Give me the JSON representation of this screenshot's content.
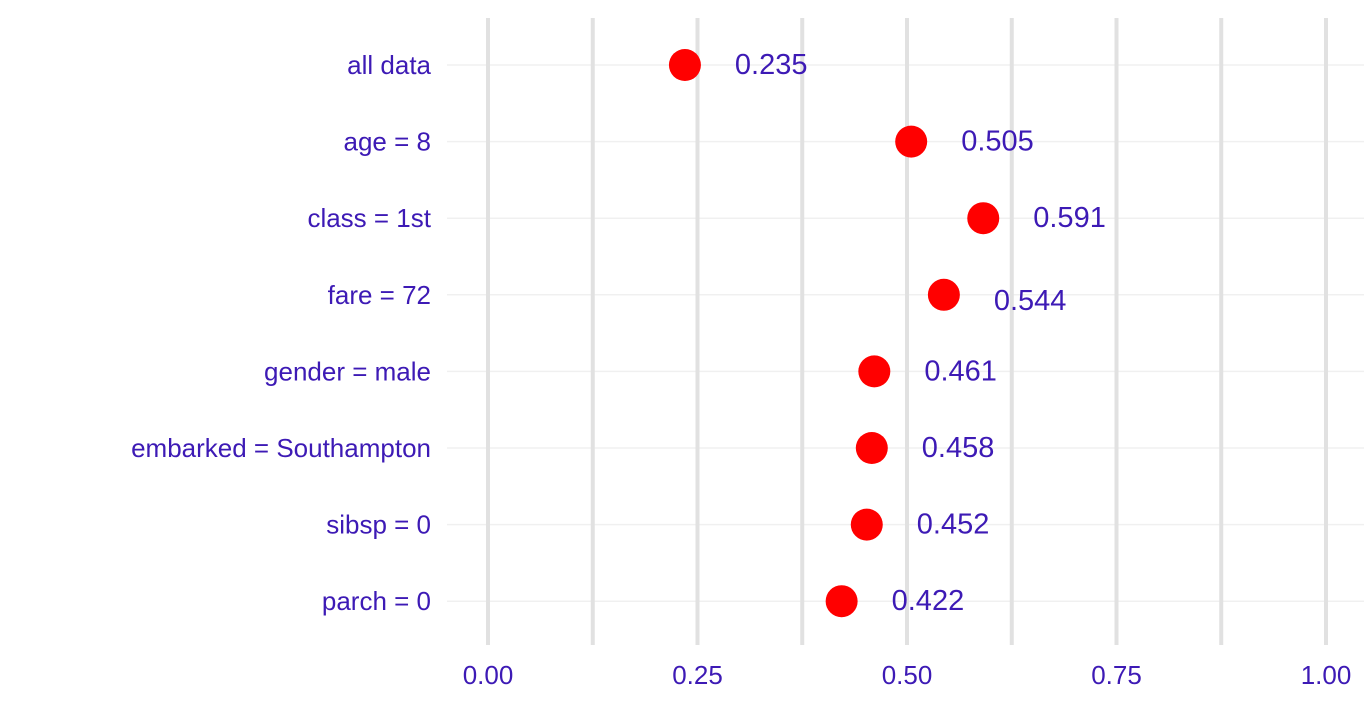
{
  "chart_data": {
    "type": "scatter",
    "categories": [
      "all data",
      "age = 8",
      "class = 1st",
      "fare = 72",
      "gender = male",
      "embarked = Southampton",
      "sibsp = 0",
      "parch = 0"
    ],
    "values": [
      0.235,
      0.505,
      0.591,
      0.544,
      0.461,
      0.458,
      0.452,
      0.422
    ],
    "labels": [
      "0.235",
      "0.505",
      "0.591",
      "0.544",
      "0.461",
      "0.458",
      "0.452",
      "0.422"
    ],
    "xlim": [
      0,
      1
    ],
    "xticks": [
      0,
      0.25,
      0.5,
      0.75,
      1.0
    ],
    "xtick_labels": [
      "0.00",
      "0.25",
      "0.50",
      "0.75",
      "1.00"
    ],
    "minor_xticks": [
      0.125,
      0.375,
      0.625,
      0.875
    ],
    "grid": true,
    "title": "",
    "xlabel": "",
    "ylabel": "",
    "colors": {
      "point": "#ff0000",
      "text": "#3d1ab5",
      "grid": "#e1e1e1"
    }
  }
}
